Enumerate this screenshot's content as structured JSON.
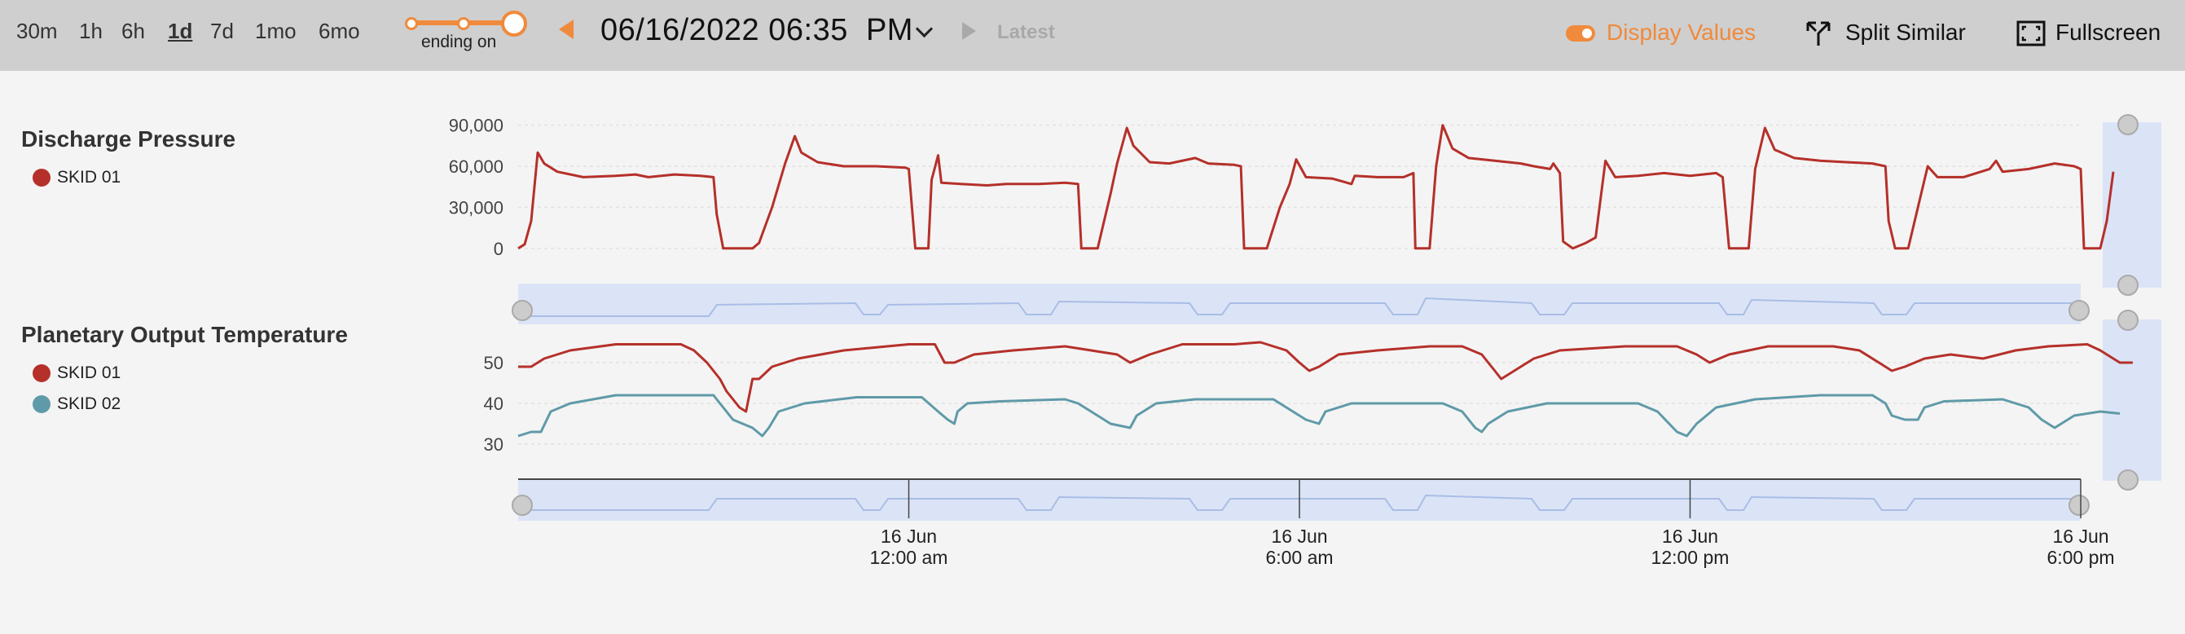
{
  "toolbar": {
    "ranges": [
      "30m",
      "1h",
      "6h",
      "1d",
      "7d",
      "1mo",
      "6mo"
    ],
    "active_range": "1d",
    "ending_label": "ending on",
    "datetime": "06/16/2022 06:35  PM",
    "latest_label": "Latest",
    "display_values_label": "Display Values",
    "split_similar_label": "Split Similar",
    "fullscreen_label": "Fullscreen",
    "icons": [
      "caret-left-icon",
      "chevron-down-icon",
      "caret-right-icon",
      "toggle-icon",
      "split-icon",
      "fullscreen-icon"
    ],
    "accent_color": "#f08a3c"
  },
  "charts": [
    {
      "title": "Discharge Pressure",
      "legend": [
        {
          "label": "SKID 01",
          "color": "#b5302a"
        }
      ]
    },
    {
      "title": "Planetary Output Temperature",
      "legend": [
        {
          "label": "SKID 01",
          "color": "#b5302a"
        },
        {
          "label": "SKID 02",
          "color": "#5f9aa8"
        }
      ]
    }
  ],
  "chart_data": [
    {
      "type": "line",
      "title": "Discharge Pressure",
      "xlim": [
        0,
        24
      ],
      "ylim": [
        -15000,
        110000
      ],
      "yticks": [
        0,
        30000,
        60000,
        90000
      ],
      "ytick_labels": [
        "0",
        "30,000",
        "60,000",
        "90,000"
      ],
      "grid": true,
      "series": [
        {
          "name": "SKID 01",
          "color": "#b5302a",
          "points": [
            [
              0,
              0
            ],
            [
              0.1,
              3000
            ],
            [
              0.2,
              20000
            ],
            [
              0.3,
              70000
            ],
            [
              0.4,
              62000
            ],
            [
              0.6,
              56000
            ],
            [
              1.0,
              52000
            ],
            [
              1.5,
              53000
            ],
            [
              1.8,
              54000
            ],
            [
              2.0,
              52000
            ],
            [
              2.4,
              54000
            ],
            [
              2.8,
              53000
            ],
            [
              3.0,
              52000
            ],
            [
              3.05,
              25000
            ],
            [
              3.15,
              0
            ],
            [
              3.6,
              0
            ],
            [
              3.7,
              4000
            ],
            [
              3.9,
              30000
            ],
            [
              4.1,
              62000
            ],
            [
              4.25,
              82000
            ],
            [
              4.35,
              70000
            ],
            [
              4.6,
              63000
            ],
            [
              5.0,
              60000
            ],
            [
              5.5,
              60000
            ],
            [
              5.95,
              59000
            ],
            [
              6.0,
              58000
            ],
            [
              6.1,
              0
            ],
            [
              6.3,
              0
            ],
            [
              6.35,
              50000
            ],
            [
              6.45,
              68000
            ],
            [
              6.5,
              48000
            ],
            [
              6.8,
              47000
            ],
            [
              7.2,
              46000
            ],
            [
              7.5,
              47000
            ],
            [
              8.0,
              47000
            ],
            [
              8.4,
              48000
            ],
            [
              8.6,
              47000
            ],
            [
              8.65,
              0
            ],
            [
              8.9,
              0
            ],
            [
              9.1,
              40000
            ],
            [
              9.2,
              62000
            ],
            [
              9.35,
              88000
            ],
            [
              9.45,
              75000
            ],
            [
              9.7,
              63000
            ],
            [
              10.0,
              62000
            ],
            [
              10.4,
              66000
            ],
            [
              10.6,
              62000
            ],
            [
              11.0,
              61000
            ],
            [
              11.1,
              60000
            ],
            [
              11.15,
              0
            ],
            [
              11.5,
              0
            ],
            [
              11.7,
              30000
            ],
            [
              11.85,
              47000
            ],
            [
              11.95,
              65000
            ],
            [
              12.1,
              52000
            ],
            [
              12.5,
              51000
            ],
            [
              12.8,
              47000
            ],
            [
              12.85,
              53000
            ],
            [
              13.2,
              52000
            ],
            [
              13.6,
              52000
            ],
            [
              13.75,
              55000
            ],
            [
              13.78,
              0
            ],
            [
              14.0,
              0
            ],
            [
              14.1,
              60000
            ],
            [
              14.2,
              90000
            ],
            [
              14.35,
              73000
            ],
            [
              14.6,
              66000
            ],
            [
              15.0,
              64000
            ],
            [
              15.4,
              62000
            ],
            [
              15.6,
              60000
            ],
            [
              15.85,
              58000
            ],
            [
              15.9,
              62000
            ],
            [
              16.0,
              55000
            ],
            [
              16.05,
              5000
            ],
            [
              16.2,
              0
            ],
            [
              16.4,
              4000
            ],
            [
              16.55,
              8000
            ],
            [
              16.7,
              64000
            ],
            [
              16.85,
              52000
            ],
            [
              17.2,
              53000
            ],
            [
              17.6,
              55000
            ],
            [
              18.0,
              53000
            ],
            [
              18.4,
              55000
            ],
            [
              18.5,
              52000
            ],
            [
              18.6,
              0
            ],
            [
              18.9,
              0
            ],
            [
              19.0,
              58000
            ],
            [
              19.15,
              88000
            ],
            [
              19.3,
              72000
            ],
            [
              19.6,
              66000
            ],
            [
              20.0,
              64000
            ],
            [
              20.4,
              63000
            ],
            [
              20.8,
              62000
            ],
            [
              21.0,
              60000
            ],
            [
              21.05,
              20000
            ],
            [
              21.15,
              0
            ],
            [
              21.35,
              0
            ],
            [
              21.5,
              30000
            ],
            [
              21.65,
              60000
            ],
            [
              21.8,
              52000
            ],
            [
              22.2,
              52000
            ],
            [
              22.6,
              58000
            ],
            [
              22.7,
              64000
            ],
            [
              22.8,
              56000
            ],
            [
              23.2,
              58000
            ],
            [
              23.6,
              62000
            ],
            [
              23.9,
              60000
            ],
            [
              24.0,
              58000
            ],
            [
              24.05,
              0
            ],
            [
              24.3,
              0
            ],
            [
              24.4,
              20000
            ],
            [
              24.5,
              56000
            ]
          ]
        }
      ]
    },
    {
      "type": "line",
      "title": "Planetary Output Temperature",
      "xlim": [
        0,
        24
      ],
      "ylim": [
        23,
        60
      ],
      "yticks": [
        30,
        40,
        50
      ],
      "ytick_labels": [
        "30",
        "40",
        "50"
      ],
      "grid": true,
      "xticks": [
        {
          "x": 6,
          "date": "16 Jun",
          "time": "12:00 am"
        },
        {
          "x": 12,
          "date": "16 Jun",
          "time": "6:00 am"
        },
        {
          "x": 18,
          "date": "16 Jun",
          "time": "12:00 pm"
        },
        {
          "x": 24,
          "date": "16 Jun",
          "time": "6:00 pm"
        }
      ],
      "series": [
        {
          "name": "SKID 01",
          "color": "#b5302a",
          "points": [
            [
              0,
              49
            ],
            [
              0.2,
              49
            ],
            [
              0.4,
              51
            ],
            [
              0.8,
              53
            ],
            [
              1.5,
              54.5
            ],
            [
              2.5,
              54.5
            ],
            [
              2.7,
              53
            ],
            [
              2.9,
              50
            ],
            [
              3.1,
              46
            ],
            [
              3.2,
              43
            ],
            [
              3.3,
              41
            ],
            [
              3.4,
              39
            ],
            [
              3.5,
              38
            ],
            [
              3.6,
              46
            ],
            [
              3.7,
              46
            ],
            [
              3.9,
              49
            ],
            [
              4.3,
              51
            ],
            [
              5.0,
              53
            ],
            [
              6.0,
              54.5
            ],
            [
              6.4,
              54.5
            ],
            [
              6.55,
              50
            ],
            [
              6.7,
              50
            ],
            [
              7.0,
              52
            ],
            [
              7.6,
              53
            ],
            [
              8.4,
              54
            ],
            [
              8.8,
              53
            ],
            [
              9.2,
              52
            ],
            [
              9.4,
              50
            ],
            [
              9.7,
              52
            ],
            [
              10.2,
              54.5
            ],
            [
              11.0,
              54.5
            ],
            [
              11.4,
              55
            ],
            [
              11.8,
              53
            ],
            [
              12.0,
              50
            ],
            [
              12.15,
              48
            ],
            [
              12.3,
              49
            ],
            [
              12.6,
              52
            ],
            [
              13.2,
              53
            ],
            [
              14.0,
              54
            ],
            [
              14.5,
              54
            ],
            [
              14.8,
              52
            ],
            [
              15.0,
              48
            ],
            [
              15.1,
              46
            ],
            [
              15.3,
              48
            ],
            [
              15.6,
              51
            ],
            [
              16.0,
              53
            ],
            [
              17.0,
              54
            ],
            [
              17.8,
              54
            ],
            [
              18.1,
              52
            ],
            [
              18.3,
              50
            ],
            [
              18.6,
              52
            ],
            [
              19.2,
              54
            ],
            [
              20.2,
              54
            ],
            [
              20.6,
              53
            ],
            [
              20.9,
              50
            ],
            [
              21.1,
              48
            ],
            [
              21.3,
              49
            ],
            [
              21.6,
              51
            ],
            [
              22.0,
              52
            ],
            [
              22.5,
              51
            ],
            [
              23.0,
              53
            ],
            [
              23.5,
              54
            ],
            [
              24.1,
              54.5
            ],
            [
              24.3,
              53
            ],
            [
              24.6,
              50
            ],
            [
              24.8,
              50
            ]
          ]
        },
        {
          "name": "SKID 02",
          "color": "#5f9aa8",
          "points": [
            [
              0,
              32
            ],
            [
              0.2,
              33
            ],
            [
              0.35,
              33
            ],
            [
              0.5,
              38
            ],
            [
              0.8,
              40
            ],
            [
              1.5,
              42
            ],
            [
              3.0,
              42
            ],
            [
              3.1,
              40
            ],
            [
              3.3,
              36
            ],
            [
              3.6,
              34
            ],
            [
              3.75,
              32
            ],
            [
              3.85,
              34
            ],
            [
              4.0,
              38
            ],
            [
              4.4,
              40
            ],
            [
              5.2,
              41.5
            ],
            [
              6.2,
              41.5
            ],
            [
              6.45,
              38
            ],
            [
              6.6,
              36
            ],
            [
              6.7,
              35
            ],
            [
              6.75,
              38
            ],
            [
              6.9,
              40
            ],
            [
              7.4,
              40.5
            ],
            [
              8.4,
              41
            ],
            [
              8.6,
              40
            ],
            [
              8.9,
              37
            ],
            [
              9.1,
              35
            ],
            [
              9.4,
              34
            ],
            [
              9.5,
              37
            ],
            [
              9.8,
              40
            ],
            [
              10.4,
              41
            ],
            [
              11.6,
              41
            ],
            [
              11.9,
              38
            ],
            [
              12.1,
              36
            ],
            [
              12.3,
              35
            ],
            [
              12.4,
              38
            ],
            [
              12.8,
              40
            ],
            [
              13.6,
              40
            ],
            [
              14.2,
              40
            ],
            [
              14.5,
              38
            ],
            [
              14.7,
              34
            ],
            [
              14.8,
              33
            ],
            [
              14.9,
              35
            ],
            [
              15.2,
              38
            ],
            [
              15.8,
              40
            ],
            [
              16.8,
              40
            ],
            [
              17.2,
              40
            ],
            [
              17.5,
              38
            ],
            [
              17.8,
              33
            ],
            [
              17.95,
              32
            ],
            [
              18.1,
              35
            ],
            [
              18.4,
              39
            ],
            [
              19.0,
              41
            ],
            [
              20.0,
              42
            ],
            [
              20.8,
              42
            ],
            [
              21.0,
              40
            ],
            [
              21.1,
              37
            ],
            [
              21.3,
              36
            ],
            [
              21.5,
              36
            ],
            [
              21.6,
              39
            ],
            [
              21.9,
              40.5
            ],
            [
              22.8,
              41
            ],
            [
              23.2,
              39
            ],
            [
              23.4,
              36
            ],
            [
              23.6,
              34
            ],
            [
              23.7,
              35
            ],
            [
              23.9,
              37
            ],
            [
              24.3,
              38
            ],
            [
              24.6,
              37.5
            ]
          ]
        }
      ]
    }
  ]
}
